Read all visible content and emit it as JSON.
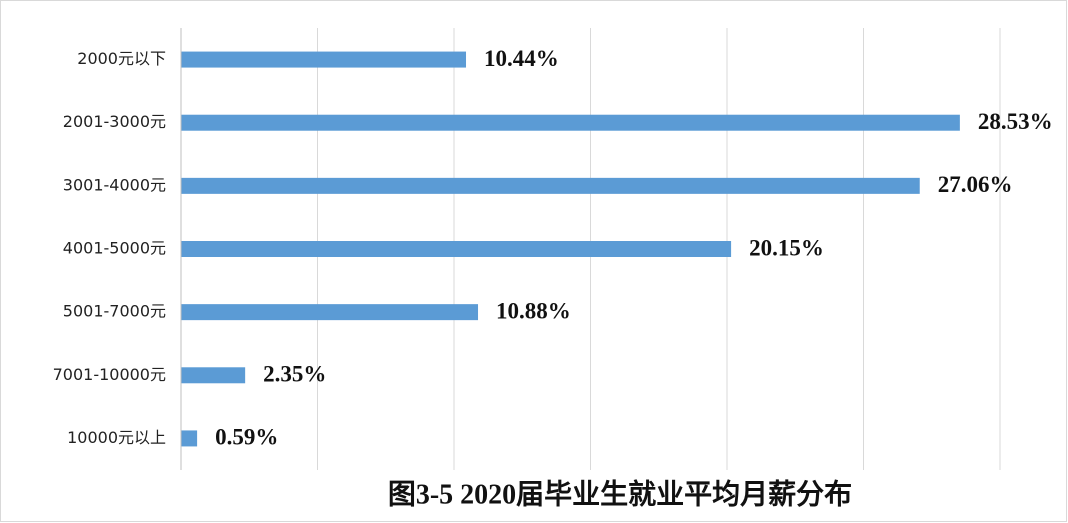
{
  "chart_data": {
    "type": "bar",
    "orientation": "horizontal",
    "title": "图3-5  2020届毕业生就业平均月薪分布",
    "categories": [
      "2000元以下",
      "2001-3000元",
      "3001-4000元",
      "4001-5000元",
      "5001-7000元",
      "7001-10000元",
      "10000元以上"
    ],
    "values": [
      10.44,
      28.53,
      27.06,
      20.15,
      10.88,
      2.35,
      0.59
    ],
    "value_labels": [
      "10.44%",
      "28.53%",
      "27.06%",
      "20.15%",
      "10.88%",
      "2.35%",
      "0.59%"
    ],
    "color": "#5b9bd5",
    "xlim": [
      0,
      30
    ],
    "xticks": [
      0,
      5,
      10,
      15,
      20,
      25,
      30
    ],
    "grid": true
  }
}
